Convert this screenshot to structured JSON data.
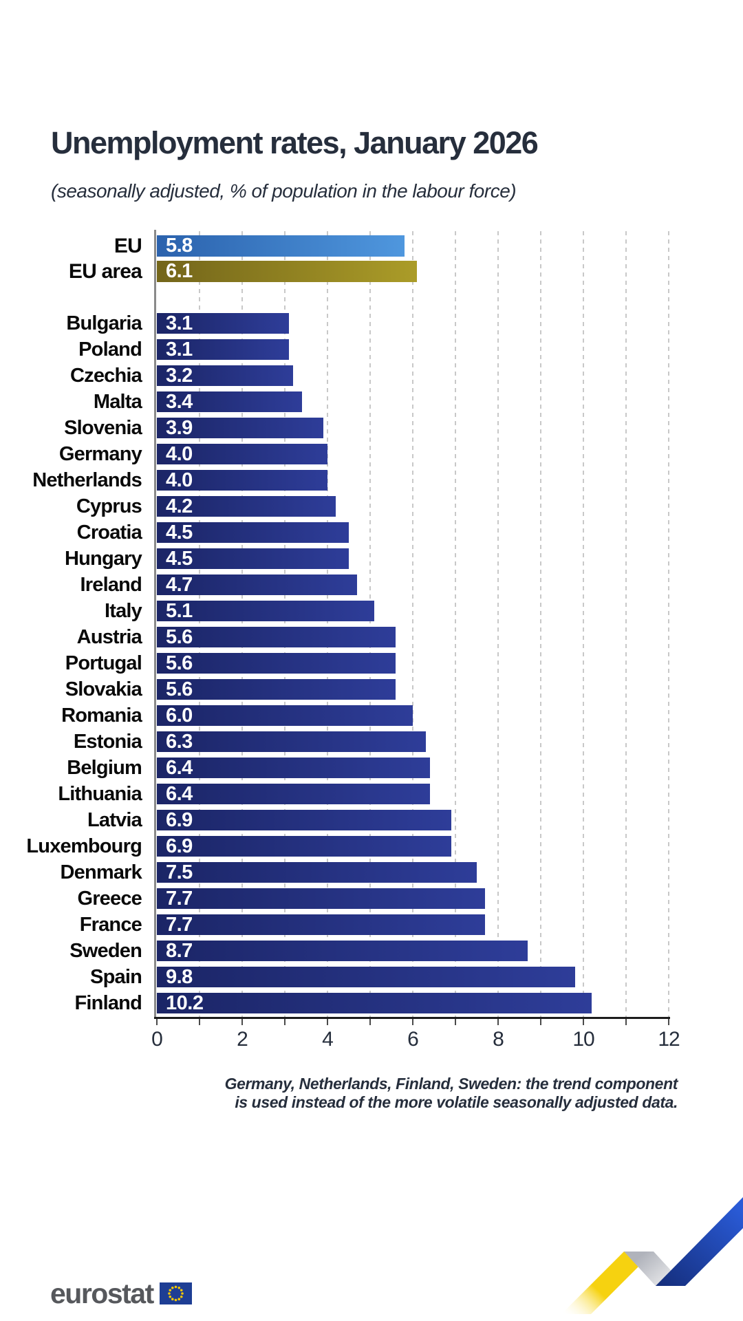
{
  "title": "Unemployment rates, January 2026",
  "subtitle": "(seasonally adjusted, % of population in the labour force)",
  "chart_data": {
    "type": "bar",
    "orientation": "horizontal",
    "x_axis": {
      "min": 0,
      "max": 12,
      "ticks": [
        0,
        2,
        4,
        6,
        8,
        10,
        12
      ]
    },
    "grid": {
      "show": true,
      "interval": 1,
      "style": "dashed-vertical"
    },
    "aggregates": [
      {
        "label": "EU",
        "value": 5.8,
        "value_label": "5.8"
      },
      {
        "label": "EU area",
        "value": 6.1,
        "value_label": "6.1"
      }
    ],
    "countries": [
      {
        "label": "Bulgaria",
        "value": 3.1,
        "value_label": "3.1"
      },
      {
        "label": "Poland",
        "value": 3.1,
        "value_label": "3.1"
      },
      {
        "label": "Czechia",
        "value": 3.2,
        "value_label": "3.2"
      },
      {
        "label": "Malta",
        "value": 3.4,
        "value_label": "3.4"
      },
      {
        "label": "Slovenia",
        "value": 3.9,
        "value_label": "3.9"
      },
      {
        "label": "Germany",
        "value": 4.0,
        "value_label": "4.0"
      },
      {
        "label": "Netherlands",
        "value": 4.0,
        "value_label": "4.0"
      },
      {
        "label": "Cyprus",
        "value": 4.2,
        "value_label": "4.2"
      },
      {
        "label": "Croatia",
        "value": 4.5,
        "value_label": "4.5"
      },
      {
        "label": "Hungary",
        "value": 4.5,
        "value_label": "4.5"
      },
      {
        "label": "Ireland",
        "value": 4.7,
        "value_label": "4.7"
      },
      {
        "label": "Italy",
        "value": 5.1,
        "value_label": "5.1"
      },
      {
        "label": "Austria",
        "value": 5.6,
        "value_label": "5.6"
      },
      {
        "label": "Portugal",
        "value": 5.6,
        "value_label": "5.6"
      },
      {
        "label": "Slovakia",
        "value": 5.6,
        "value_label": "5.6"
      },
      {
        "label": "Romania",
        "value": 6.0,
        "value_label": "6.0"
      },
      {
        "label": "Estonia",
        "value": 6.3,
        "value_label": "6.3"
      },
      {
        "label": "Belgium",
        "value": 6.4,
        "value_label": "6.4"
      },
      {
        "label": "Lithuania",
        "value": 6.4,
        "value_label": "6.4"
      },
      {
        "label": "Latvia",
        "value": 6.9,
        "value_label": "6.9"
      },
      {
        "label": "Luxembourg",
        "value": 6.9,
        "value_label": "6.9"
      },
      {
        "label": "Denmark",
        "value": 7.5,
        "value_label": "7.5"
      },
      {
        "label": "Greece",
        "value": 7.7,
        "value_label": "7.7"
      },
      {
        "label": "France",
        "value": 7.7,
        "value_label": "7.7"
      },
      {
        "label": "Sweden",
        "value": 8.7,
        "value_label": "8.7"
      },
      {
        "label": "Spain",
        "value": 9.8,
        "value_label": "9.8"
      },
      {
        "label": "Finland",
        "value": 10.2,
        "value_label": "10.2"
      }
    ]
  },
  "footnote": {
    "line1": "Germany, Netherlands, Finland, Sweden: the trend component",
    "line2": "is used instead of the more volatile seasonally adjusted data."
  },
  "logo": {
    "text": "eurostat"
  },
  "colors": {
    "eu_bar_start": "#2b62ad",
    "eu_bar_end": "#4f97de",
    "eu_area_bar_start": "#73651a",
    "eu_area_bar_end": "#ab9c28",
    "country_bar_start": "#1b2566",
    "country_bar_end": "#2e3d99",
    "title_text": "#262e3c",
    "grid_line": "#c8c8c8",
    "swoosh_yellow": "#f6d210",
    "swoosh_gray": "#b0b3bb",
    "swoosh_blue_dark": "#152e7c",
    "swoosh_blue_light": "#2a5bd7",
    "flag_blue": "#1e3e94",
    "flag_stars": "#f7c800",
    "logo_text": "#56585c"
  }
}
